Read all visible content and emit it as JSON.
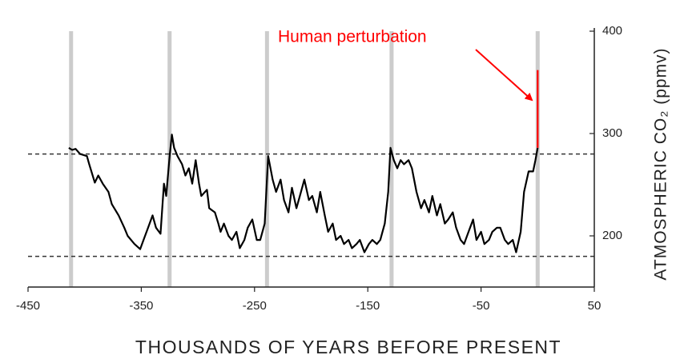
{
  "chart_data": {
    "type": "line",
    "x_label": "THOUSANDS OF YEARS BEFORE PRESENT",
    "y_label": "ATMOSPHERIC CO₂ (ppmv)",
    "annotation": "Human perturbation",
    "annotation_color": "#ff0000",
    "xlim": [
      -450,
      50
    ],
    "xticks": [
      -450,
      -350,
      -250,
      -150,
      -50,
      50
    ],
    "ylim": [
      150,
      400
    ],
    "yticks": [
      200,
      300,
      400
    ],
    "y_axis_side": "right",
    "grid": false,
    "reference_lines": [
      280,
      180
    ],
    "highlight_x": [
      -412,
      -325,
      -239,
      -129,
      0
    ],
    "highlight_color": "#cccccc",
    "series": [
      {
        "color": "#000000",
        "x": [
          -414,
          -411,
          -408,
          -404,
          -398,
          -396,
          -391,
          -388,
          -384,
          -379,
          -376,
          -370,
          -365,
          -362,
          -356,
          -351,
          -348,
          -344,
          -340,
          -337,
          -333,
          -330,
          -328,
          -325,
          -323,
          -321,
          -318,
          -314,
          -311,
          -308,
          -305,
          -302,
          -299,
          -297,
          -292,
          -290,
          -285,
          -282,
          -280,
          -277,
          -273,
          -270,
          -266,
          -263,
          -259,
          -256,
          -252,
          -248,
          -245,
          -241,
          -238,
          -234,
          -231,
          -227,
          -224,
          -220,
          -217,
          -213,
          -210,
          -206,
          -202,
          -199,
          -195,
          -192,
          -188,
          -185,
          -181,
          -178,
          -174,
          -171,
          -167,
          -164,
          -160,
          -157,
          -153,
          -149,
          -146,
          -142,
          -139,
          -135,
          -132,
          -130,
          -127,
          -124,
          -121,
          -118,
          -114,
          -111,
          -107,
          -103,
          -100,
          -96,
          -93,
          -89,
          -86,
          -82,
          -79,
          -75,
          -72,
          -68,
          -65,
          -61,
          -57,
          -54,
          -50,
          -47,
          -43,
          -40,
          -36,
          -33,
          -29,
          -26,
          -22,
          -19,
          -15,
          -12,
          -8,
          -4,
          -2,
          0
        ],
        "values": [
          286,
          284,
          285,
          280,
          278,
          270,
          252,
          259,
          251,
          243,
          231,
          220,
          208,
          200,
          192,
          187,
          196,
          208,
          220,
          208,
          202,
          251,
          239,
          278,
          299,
          286,
          278,
          270,
          259,
          266,
          251,
          274,
          251,
          239,
          245,
          227,
          223,
          212,
          204,
          212,
          200,
          196,
          204,
          188,
          196,
          208,
          216,
          196,
          196,
          212,
          278,
          255,
          243,
          255,
          235,
          223,
          247,
          227,
          239,
          255,
          235,
          239,
          223,
          243,
          220,
          204,
          212,
          196,
          200,
          192,
          196,
          188,
          192,
          196,
          184,
          192,
          196,
          192,
          196,
          212,
          243,
          286,
          274,
          266,
          274,
          270,
          274,
          266,
          243,
          227,
          235,
          223,
          239,
          220,
          231,
          212,
          216,
          223,
          208,
          196,
          192,
          204,
          216,
          196,
          204,
          192,
          196,
          204,
          208,
          208,
          196,
          192,
          196,
          184,
          204,
          243,
          263,
          263,
          274,
          286
        ]
      },
      {
        "color": "#ff0000",
        "x": [
          0,
          0
        ],
        "values": [
          286,
          362
        ]
      }
    ]
  }
}
